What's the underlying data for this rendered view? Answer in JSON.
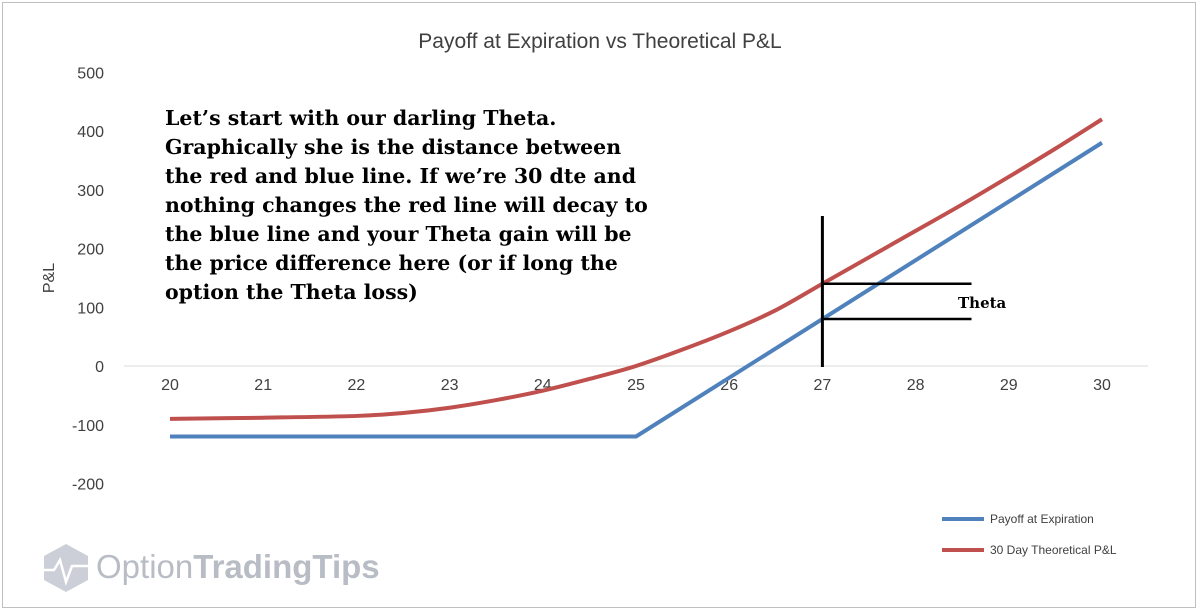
{
  "chart_data": {
    "type": "line",
    "title": "Payoff at Expiration vs Theoretical P&L",
    "xlabel": "",
    "ylabel": "P&L",
    "xlim": [
      20,
      30
    ],
    "ylim": [
      -200,
      500
    ],
    "x_ticks": [
      20,
      21,
      22,
      23,
      24,
      25,
      26,
      27,
      28,
      29,
      30
    ],
    "y_ticks": [
      500,
      400,
      300,
      200,
      100,
      0,
      -100,
      -200
    ],
    "grid": false,
    "legend_position": "bottom-right",
    "series": [
      {
        "name": "Payoff at Expiration",
        "color": "#4f81bd",
        "x": [
          20,
          25,
          30
        ],
        "y": [
          -120,
          -120,
          380
        ]
      },
      {
        "name": "30 Day Theoretical P&L",
        "color": "#c0504d",
        "x": [
          20,
          21,
          22,
          22.5,
          23,
          23.5,
          24,
          24.5,
          25,
          25.5,
          26,
          26.5,
          27,
          27.5,
          28,
          28.5,
          29,
          29.5,
          30
        ],
        "y": [
          -90,
          -88,
          -85,
          -80,
          -71,
          -58,
          -42,
          -22,
          0,
          28,
          59,
          95,
          140,
          185,
          230,
          275,
          322,
          370,
          420
        ]
      }
    ],
    "annotations": {
      "main_text": [
        "Let’s start with our darling Theta.",
        "Graphically she is the distance between",
        "the red and blue line. If we’re 30 dte and",
        "nothing changes the red line will decay to",
        "the blue line and your Theta gain will be",
        "the price difference here (or if long the",
        "option the Theta loss)"
      ],
      "theta_label": "Theta",
      "marker_x": 27,
      "marker_y_top": 140,
      "marker_y_bottom": 80,
      "marker_x_end": 28.6
    }
  },
  "watermark": {
    "brand_light": "Option",
    "brand_bold": "TradingTips"
  }
}
